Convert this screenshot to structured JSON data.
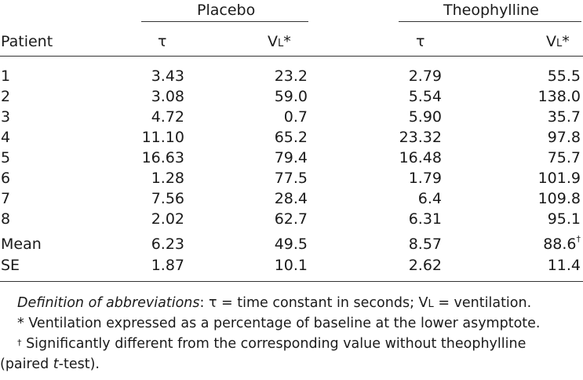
{
  "groups": {
    "placebo": "Placebo",
    "theophylline": "Theophylline"
  },
  "columns": {
    "patient": "Patient",
    "tau": "τ",
    "vl_main": "V",
    "vl_sub": "L",
    "vl_star": "*"
  },
  "rows": [
    {
      "label": "1",
      "p_tau": "3.43",
      "p_vl": "23.2",
      "t_tau": "2.79",
      "t_vl": "55.5",
      "t_vl_mark": ""
    },
    {
      "label": "2",
      "p_tau": "3.08",
      "p_vl": "59.0",
      "t_tau": "5.54",
      "t_vl": "138.0",
      "t_vl_mark": ""
    },
    {
      "label": "3",
      "p_tau": "4.72",
      "p_vl": "0.7",
      "t_tau": "5.90",
      "t_vl": "35.7",
      "t_vl_mark": ""
    },
    {
      "label": "4",
      "p_tau": "11.10",
      "p_vl": "65.2",
      "t_tau": "23.32",
      "t_vl": "97.8",
      "t_vl_mark": ""
    },
    {
      "label": "5",
      "p_tau": "16.63",
      "p_vl": "79.4",
      "t_tau": "16.48",
      "t_vl": "75.7",
      "t_vl_mark": ""
    },
    {
      "label": "6",
      "p_tau": "1.28",
      "p_vl": "77.5",
      "t_tau": "1.79",
      "t_vl": "101.9",
      "t_vl_mark": ""
    },
    {
      "label": "7",
      "p_tau": "7.56",
      "p_vl": "28.4",
      "t_tau": "6.4",
      "t_vl": "109.8",
      "t_vl_mark": ""
    },
    {
      "label": "8",
      "p_tau": "2.02",
      "p_vl": "62.7",
      "t_tau": "6.31",
      "t_vl": "95.1",
      "t_vl_mark": ""
    },
    {
      "label": "Mean",
      "p_tau": "6.23",
      "p_vl": "49.5",
      "t_tau": "8.57",
      "t_vl": "88.6",
      "t_vl_mark": "†"
    },
    {
      "label": "SE",
      "p_tau": "1.87",
      "p_vl": "10.1",
      "t_tau": "2.62",
      "t_vl": "11.4",
      "t_vl_mark": ""
    }
  ],
  "footnotes": {
    "def_label": "Definition of abbreviations",
    "def_text_a": ": τ = time constant in seconds; V",
    "def_text_sub": "L",
    "def_text_b": " = ventilation.",
    "star_text": "* Ventilation expressed as a percentage of baseline at the lower asymptote.",
    "dagger_mark": "†",
    "dagger_text_a": " Significantly different from the corresponding value without theophylline",
    "dagger_text_b": "(paired ",
    "dagger_text_t": "t",
    "dagger_text_c": "-test)."
  }
}
